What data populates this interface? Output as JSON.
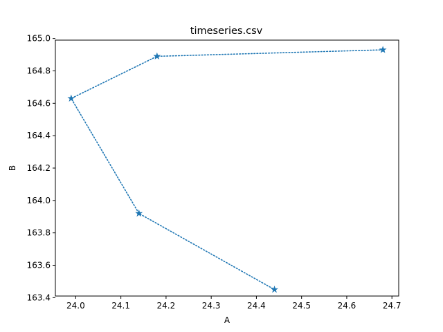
{
  "chart_data": {
    "type": "line",
    "title": "timeseries.csv",
    "xlabel": "A",
    "ylabel": "B",
    "xlim": [
      23.955,
      24.715
    ],
    "ylim": [
      163.41,
      164.99
    ],
    "xticks": [
      24.0,
      24.1,
      24.2,
      24.3,
      24.4,
      24.5,
      24.6,
      24.7
    ],
    "xtick_labels": [
      "24.0",
      "24.1",
      "24.2",
      "24.3",
      "24.4",
      "24.5",
      "24.6",
      "24.7"
    ],
    "yticks": [
      163.4,
      163.6,
      163.8,
      164.0,
      164.2,
      164.4,
      164.6,
      164.8,
      165.0
    ],
    "ytick_labels": [
      "163.4",
      "163.6",
      "163.8",
      "164.0",
      "164.2",
      "164.4",
      "164.6",
      "164.8",
      "165.0"
    ],
    "grid": false,
    "series": [
      {
        "line_style": "dotted",
        "marker": "star",
        "color": "#1f77b4",
        "x": [
          24.68,
          24.18,
          23.99,
          24.14,
          24.44
        ],
        "y": [
          164.93,
          164.89,
          164.63,
          163.92,
          163.45
        ]
      }
    ]
  }
}
